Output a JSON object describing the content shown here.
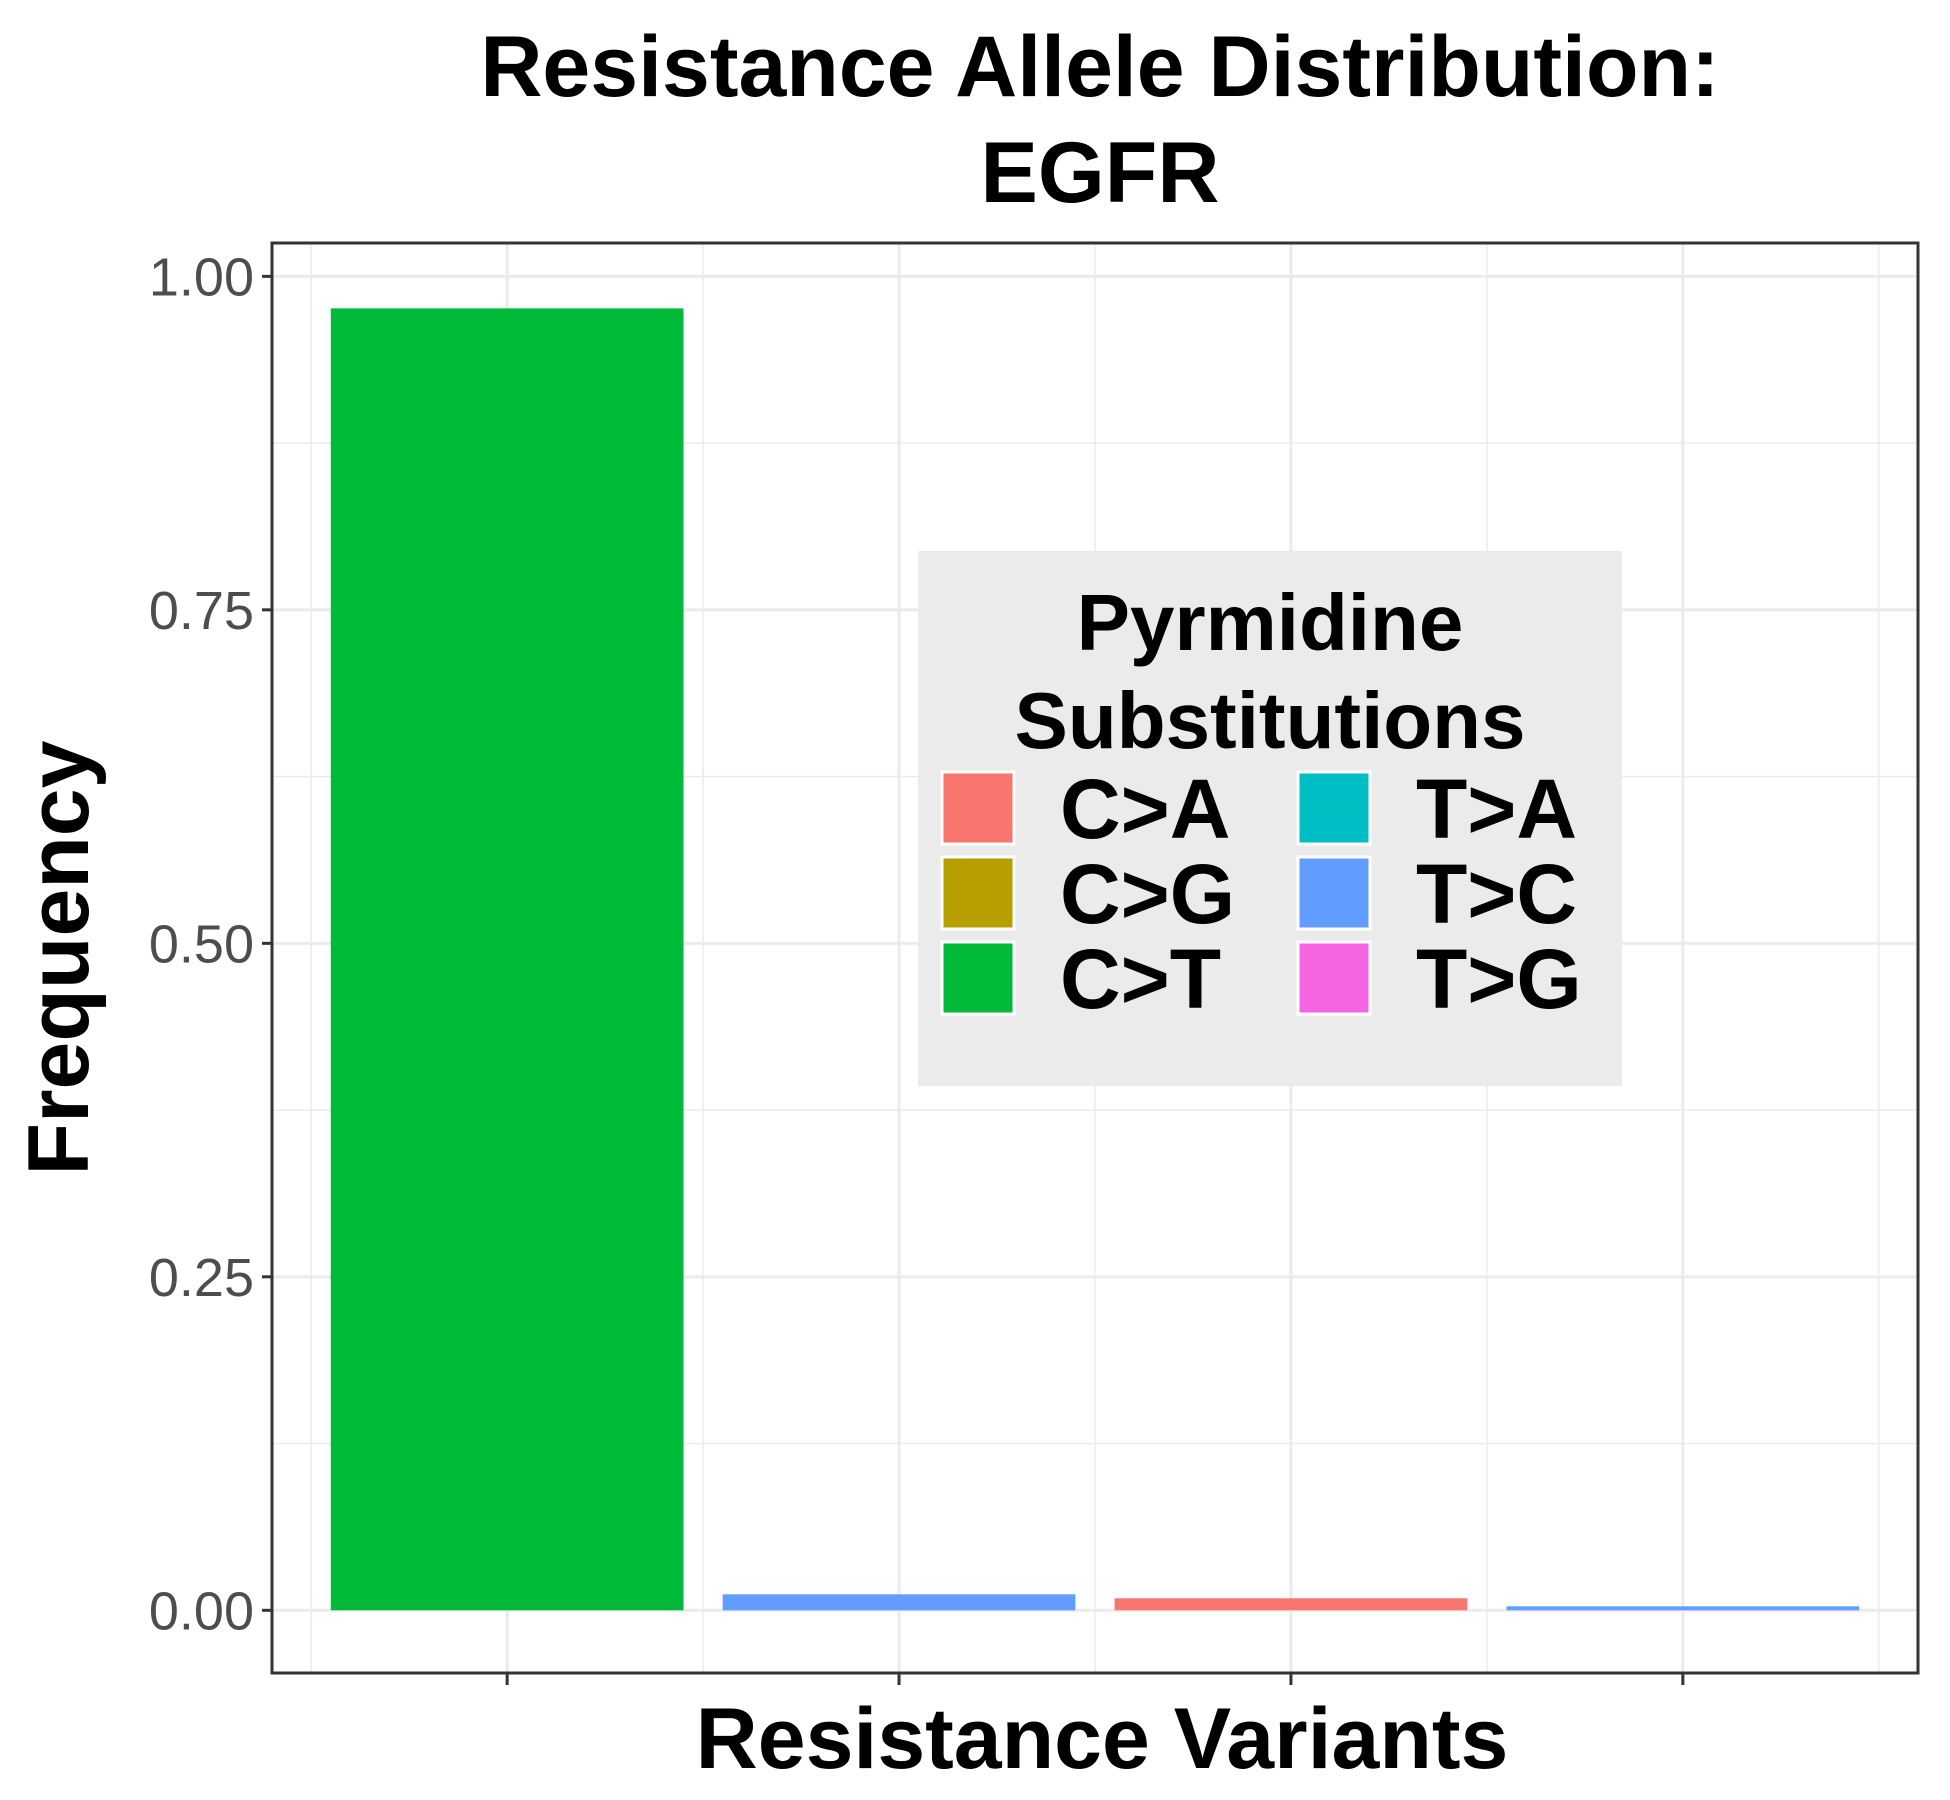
{
  "chart_data": {
    "type": "bar",
    "title_lines": [
      "Resistance Allele Distribution:",
      "EGFR"
    ],
    "xlabel": "Resistance Variants",
    "ylabel": "Frequency",
    "ylim": [
      -0.047,
      1.025
    ],
    "yticks": [
      0.0,
      0.25,
      0.5,
      0.75,
      1.0
    ],
    "ytick_labels": [
      "0.00",
      "0.25",
      "0.50",
      "0.75",
      "1.00"
    ],
    "grid": true,
    "bars": [
      {
        "substitution": "C>T",
        "value": 0.976
      },
      {
        "substitution": "T>C",
        "value": 0.012
      },
      {
        "substitution": "C>A",
        "value": 0.009
      },
      {
        "substitution": "T>C",
        "value": 0.003
      }
    ],
    "legend": {
      "title_lines": [
        "Pyrmidine",
        "Substitutions"
      ],
      "placement": "center-right inside plot",
      "items": [
        {
          "label": "C>A",
          "color": "#F8766D"
        },
        {
          "label": "C>G",
          "color": "#B79F00"
        },
        {
          "label": "C>T",
          "color": "#00BA38"
        },
        {
          "label": "T>A",
          "color": "#00BFC4"
        },
        {
          "label": "T>C",
          "color": "#619CFF"
        },
        {
          "label": "T>G",
          "color": "#F564E3"
        }
      ]
    }
  }
}
